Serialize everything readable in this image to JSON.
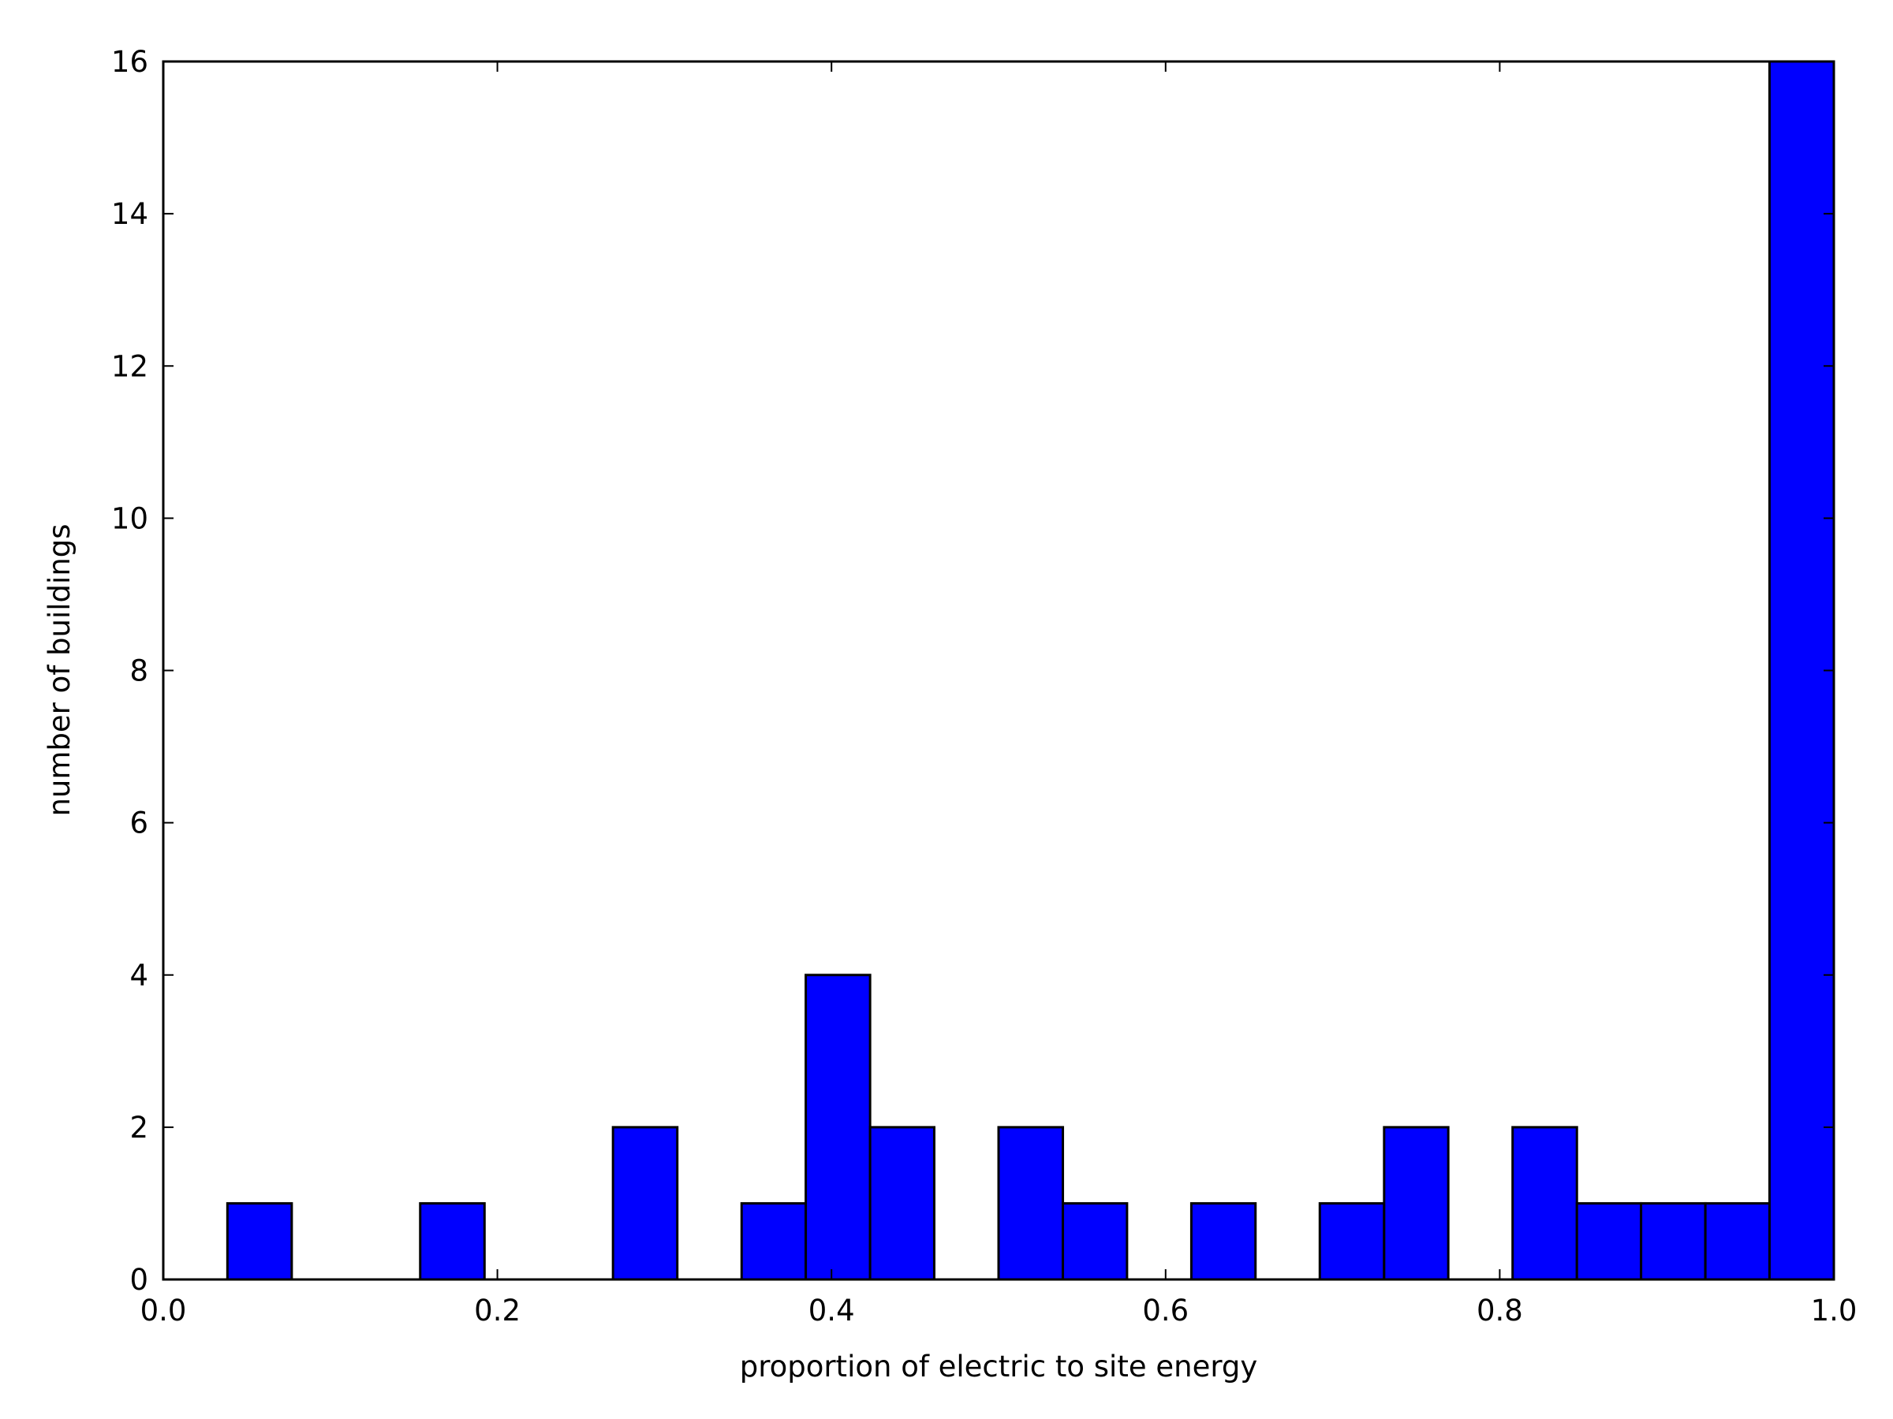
{
  "chart_data": {
    "type": "bar",
    "style": "histogram",
    "title": "",
    "xlabel": "proportion of electric to site energy",
    "ylabel": "number of buildings",
    "xlim": [
      0.0,
      1.0
    ],
    "ylim": [
      0,
      16
    ],
    "xticks": [
      "0.0",
      "0.2",
      "0.4",
      "0.6",
      "0.8",
      "1.0"
    ],
    "yticks": [
      "0",
      "2",
      "4",
      "6",
      "8",
      "10",
      "12",
      "14",
      "16"
    ],
    "bin_edges": [
      0.0384,
      0.0769,
      0.1154,
      0.1538,
      0.1923,
      0.2308,
      0.2692,
      0.3077,
      0.3462,
      0.3846,
      0.4231,
      0.4615,
      0.5,
      0.5385,
      0.5769,
      0.6154,
      0.6538,
      0.6923,
      0.7308,
      0.7692,
      0.8077,
      0.8462,
      0.8846,
      0.9231,
      0.9615,
      1.0
    ],
    "counts": [
      1,
      0,
      0,
      1,
      0,
      0,
      2,
      0,
      1,
      4,
      2,
      0,
      2,
      1,
      0,
      1,
      0,
      1,
      2,
      0,
      2,
      1,
      1,
      1,
      16
    ],
    "grid": false,
    "legend": "none",
    "colors": {
      "bar_fill": "#0000ff",
      "bar_edge": "#000000",
      "background": "#ffffff"
    }
  }
}
